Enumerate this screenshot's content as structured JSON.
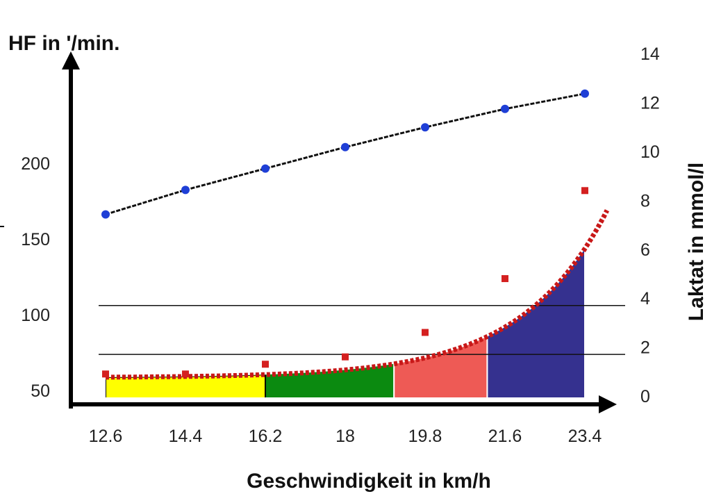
{
  "chart_data": {
    "type": "line",
    "x_label": "Geschwindigkeit in km/h",
    "y_left_label": "HF in '/min.",
    "y_right_label": "Laktat in mmol/l",
    "categories": [
      "12.6",
      "14.4",
      "16.2",
      "18",
      "19.8",
      "21.6",
      "23.4"
    ],
    "y_left_ticks": [
      "50",
      "100",
      "150",
      "200"
    ],
    "y_right_ticks": [
      "0",
      "2",
      "4",
      "6",
      "8",
      "10",
      "12",
      "14"
    ],
    "y_right_range": [
      0,
      14
    ],
    "y_left_range_note": "left axis: 50 at lactate 0, 100 per 6.4 mmol/l approx",
    "series": [
      {
        "role": "heart_rate",
        "axis": "left",
        "color": "#1f3fd6",
        "trend_color": "#111111",
        "x": [
          12.6,
          14.4,
          16.2,
          18,
          19.8,
          21.6,
          23.4
        ],
        "values": [
          162,
          178,
          192,
          206,
          219,
          231,
          241
        ]
      },
      {
        "role": "lactate",
        "axis": "right",
        "color": "#d42020",
        "trend_color": "#c81818",
        "x": [
          12.6,
          14.4,
          16.2,
          18,
          19.8,
          21.6,
          23.4
        ],
        "values": [
          0.9,
          0.9,
          1.3,
          1.6,
          2.6,
          4.8,
          8.4
        ]
      }
    ],
    "reference_lines": [
      {
        "axis": "right",
        "value": 1.7
      },
      {
        "axis": "right",
        "value": 3.7
      }
    ],
    "zones": [
      {
        "from": 12.6,
        "to": 16.2,
        "color": "#ffff00"
      },
      {
        "from": 16.2,
        "to": 19.1,
        "color": "#0b8a10"
      },
      {
        "from": 19.1,
        "to": 21.2,
        "color": "#ee5a55"
      },
      {
        "from": 21.2,
        "to": 23.4,
        "color": "#35318f"
      }
    ]
  }
}
